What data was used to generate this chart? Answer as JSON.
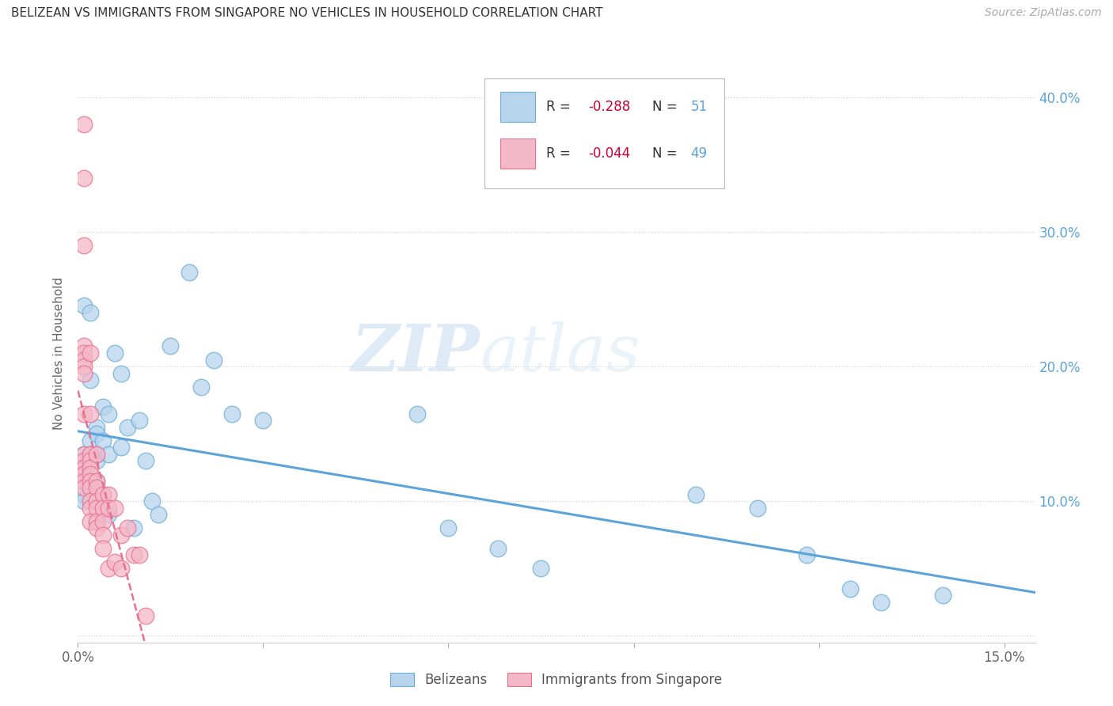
{
  "title": "BELIZEAN VS IMMIGRANTS FROM SINGAPORE NO VEHICLES IN HOUSEHOLD CORRELATION CHART",
  "source": "Source: ZipAtlas.com",
  "ylabel": "No Vehicles in Household",
  "xlim": [
    0,
    0.155
  ],
  "ylim": [
    -0.005,
    0.425
  ],
  "xticks": [
    0.0,
    0.03,
    0.06,
    0.09,
    0.12,
    0.15
  ],
  "xticklabels": [
    "0.0%",
    "",
    "",
    "",
    "",
    "15.0%"
  ],
  "yticks": [
    0.0,
    0.1,
    0.2,
    0.3,
    0.4
  ],
  "yticklabels_right": [
    "",
    "10.0%",
    "20.0%",
    "30.0%",
    "40.0%"
  ],
  "blue_fill": "#b8d4ed",
  "blue_edge": "#6aaed6",
  "pink_fill": "#f4b8c8",
  "pink_edge": "#e87090",
  "blue_line": "#5ba3d9",
  "pink_line": "#e87090",
  "legend_label_blue": "Belizeans",
  "legend_label_pink": "Immigrants from Singapore",
  "watermark_zip": "ZIP",
  "watermark_atlas": "atlas",
  "blue_scatter_x": [
    0.001,
    0.001,
    0.001,
    0.001,
    0.001,
    0.001,
    0.001,
    0.001,
    0.002,
    0.002,
    0.002,
    0.002,
    0.002,
    0.002,
    0.003,
    0.003,
    0.003,
    0.003,
    0.003,
    0.003,
    0.004,
    0.004,
    0.004,
    0.005,
    0.005,
    0.005,
    0.006,
    0.007,
    0.007,
    0.008,
    0.009,
    0.01,
    0.011,
    0.012,
    0.013,
    0.015,
    0.018,
    0.02,
    0.022,
    0.025,
    0.03,
    0.055,
    0.06,
    0.068,
    0.075,
    0.1,
    0.11,
    0.118,
    0.125,
    0.13,
    0.14
  ],
  "blue_scatter_y": [
    0.245,
    0.135,
    0.125,
    0.12,
    0.115,
    0.11,
    0.105,
    0.1,
    0.24,
    0.19,
    0.145,
    0.135,
    0.13,
    0.115,
    0.155,
    0.15,
    0.135,
    0.13,
    0.115,
    0.1,
    0.17,
    0.145,
    0.105,
    0.165,
    0.135,
    0.09,
    0.21,
    0.195,
    0.14,
    0.155,
    0.08,
    0.16,
    0.13,
    0.1,
    0.09,
    0.215,
    0.27,
    0.185,
    0.205,
    0.165,
    0.16,
    0.165,
    0.08,
    0.065,
    0.05,
    0.105,
    0.095,
    0.06,
    0.035,
    0.025,
    0.03
  ],
  "pink_scatter_x": [
    0.001,
    0.001,
    0.001,
    0.001,
    0.001,
    0.001,
    0.001,
    0.001,
    0.001,
    0.001,
    0.001,
    0.001,
    0.001,
    0.001,
    0.001,
    0.002,
    0.002,
    0.002,
    0.002,
    0.002,
    0.002,
    0.002,
    0.002,
    0.002,
    0.002,
    0.002,
    0.003,
    0.003,
    0.003,
    0.003,
    0.003,
    0.003,
    0.003,
    0.004,
    0.004,
    0.004,
    0.004,
    0.004,
    0.005,
    0.005,
    0.005,
    0.006,
    0.006,
    0.007,
    0.007,
    0.008,
    0.009,
    0.01,
    0.011
  ],
  "pink_scatter_y": [
    0.38,
    0.34,
    0.29,
    0.215,
    0.21,
    0.205,
    0.2,
    0.195,
    0.165,
    0.135,
    0.13,
    0.125,
    0.12,
    0.115,
    0.11,
    0.21,
    0.165,
    0.135,
    0.13,
    0.125,
    0.12,
    0.115,
    0.11,
    0.1,
    0.095,
    0.085,
    0.135,
    0.115,
    0.11,
    0.1,
    0.095,
    0.085,
    0.08,
    0.105,
    0.095,
    0.085,
    0.075,
    0.065,
    0.105,
    0.095,
    0.05,
    0.095,
    0.055,
    0.075,
    0.05,
    0.08,
    0.06,
    0.06,
    0.015
  ]
}
